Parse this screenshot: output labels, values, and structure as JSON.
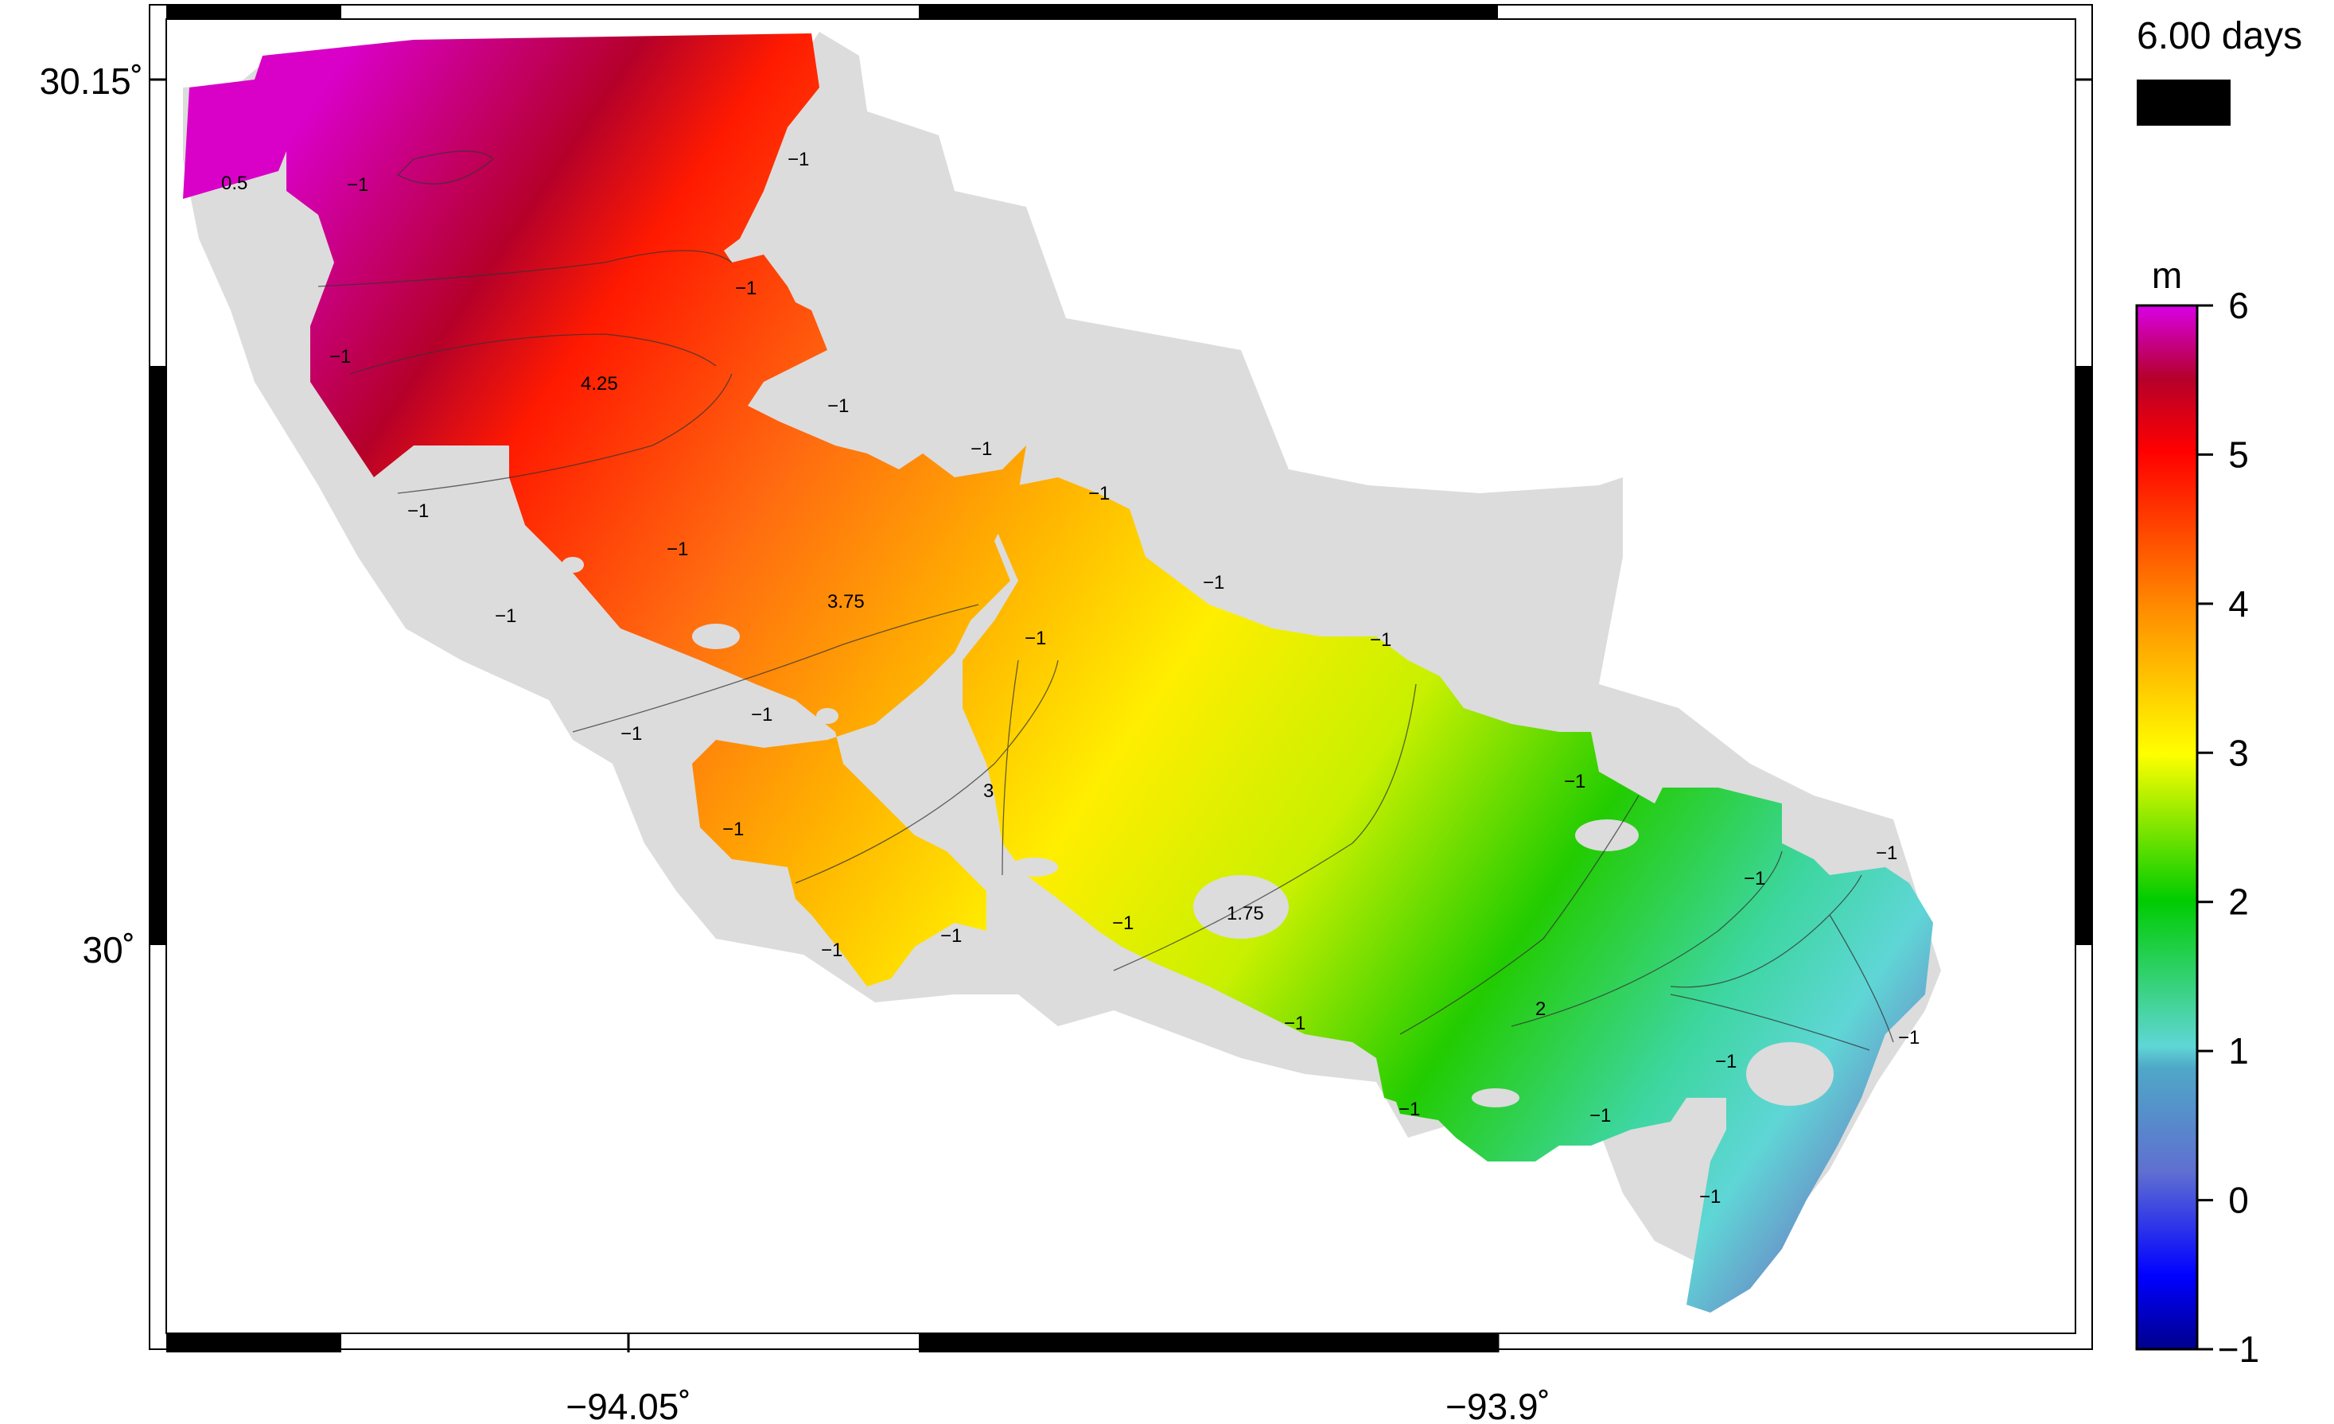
{
  "time_label": "6.00 days",
  "colorbar": {
    "unit": "m",
    "ticks": [
      "6",
      "5",
      "4",
      "3",
      "2",
      "1",
      "0",
      "−1"
    ],
    "range": [
      -1,
      6
    ],
    "colors": [
      "#00008b",
      "#0000ff",
      "#5f6fd0",
      "#5fd6d6",
      "#00cc00",
      "#ffff00",
      "#ff8c00",
      "#ff0000",
      "#b5002a",
      "#d900e6"
    ]
  },
  "axes": {
    "lat_labels": [
      "30.15˚",
      "30˚"
    ],
    "lon_labels": [
      "−94.05˚",
      "−93.9˚"
    ]
  },
  "contour_labels": [
    "0.5",
    "4.25",
    "3.75",
    "3",
    "1.75",
    "2",
    "−1"
  ],
  "colors": {
    "land_mask": "#dcdcdc",
    "frame": "#000000"
  }
}
